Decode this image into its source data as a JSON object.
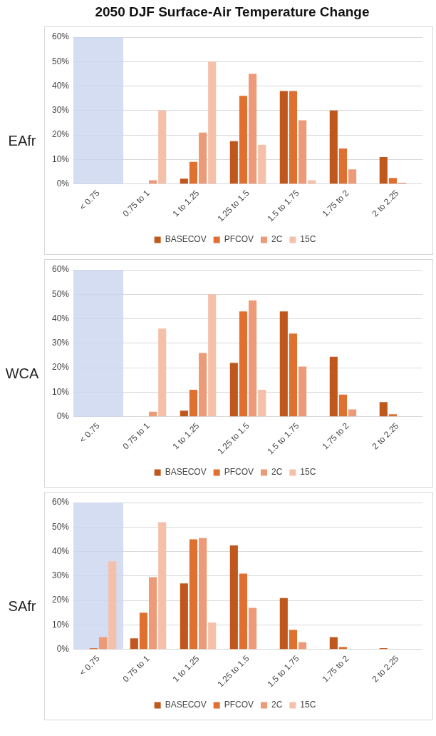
{
  "chart_data": [
    {
      "type": "bar",
      "title": "2050 DJF Surface-Air Temperature Change",
      "ylabel": "EAfr",
      "categories": [
        "< 0.75",
        "0.75 to 1",
        "1 to 1.25",
        "1.25 to 1.5",
        "1.5 to 1.75",
        "1.75 to 2",
        "2 to 2.25"
      ],
      "series": [
        {
          "name": "BASECOV",
          "color": "#c0581e",
          "values": [
            0,
            0,
            2.2,
            17.5,
            38,
            30,
            11
          ]
        },
        {
          "name": "PFCOV",
          "color": "#e07030",
          "values": [
            0,
            null,
            9,
            36,
            38,
            14.5,
            2.5
          ]
        },
        {
          "name": "2C",
          "color": "#ec9a78",
          "values": [
            0,
            1.5,
            21,
            45,
            26,
            6,
            0.5
          ]
        },
        {
          "name": "15C",
          "color": "#f5c0aa",
          "values": [
            0,
            30,
            50,
            16,
            1.5,
            0,
            0
          ]
        }
      ],
      "ylim": [
        0,
        60
      ],
      "yticks": [
        {
          "value": 0,
          "label": "0%"
        },
        {
          "value": 10,
          "label": "10%"
        },
        {
          "value": 20,
          "label": "20%"
        },
        {
          "value": 30,
          "label": "30%"
        },
        {
          "value": 40,
          "label": "40%"
        },
        {
          "value": 50,
          "label": "50%"
        },
        {
          "value": 60,
          "label": "60%"
        }
      ],
      "grid": "y",
      "legend": "bottom",
      "bands": [
        {
          "axis": "x",
          "from": "< 0.75",
          "to": "< 0.75",
          "color": "#c9d5ee"
        }
      ]
    },
    {
      "type": "bar",
      "ylabel": "WCA",
      "categories": [
        "< 0.75",
        "0.75 to 1",
        "1 to 1.25",
        "1.25 to 1.5",
        "1.5 to 1.75",
        "1.75 to 2",
        "2 to 2.25"
      ],
      "series": [
        {
          "name": "BASECOV",
          "color": "#c0581e",
          "values": [
            0,
            0,
            2.5,
            22,
            43,
            24.5,
            6
          ]
        },
        {
          "name": "PFCOV",
          "color": "#e07030",
          "values": [
            0,
            0,
            11,
            43,
            34,
            9,
            1
          ]
        },
        {
          "name": "2C",
          "color": "#ec9a78",
          "values": [
            0,
            2,
            26,
            47.5,
            20.5,
            3,
            0
          ]
        },
        {
          "name": "15C",
          "color": "#f5c0aa",
          "values": [
            0,
            36,
            50,
            11,
            null,
            0,
            0
          ]
        }
      ],
      "ylim": [
        0,
        60
      ],
      "yticks": [
        {
          "value": 0,
          "label": "0%"
        },
        {
          "value": 10,
          "label": "10%"
        },
        {
          "value": 20,
          "label": "20%"
        },
        {
          "value": 30,
          "label": "30%"
        },
        {
          "value": 40,
          "label": "40%"
        },
        {
          "value": 50,
          "label": "50%"
        },
        {
          "value": 60,
          "label": "60%"
        }
      ],
      "grid": "y",
      "legend": "bottom",
      "bands": [
        {
          "axis": "x",
          "from": "< 0.75",
          "to": "< 0.75",
          "color": "#c9d5ee"
        }
      ]
    },
    {
      "type": "bar",
      "ylabel": "SAfr",
      "categories": [
        "< 0.75",
        "0.75 to 1",
        "1 to 1.25",
        "1.25 to 1.5",
        "1.5 to 1.75",
        "1.75 to 2",
        "2 to 2.25"
      ],
      "series": [
        {
          "name": "BASECOV",
          "color": "#c0581e",
          "values": [
            0,
            4.5,
            27,
            42.5,
            21,
            5,
            0.5
          ]
        },
        {
          "name": "PFCOV",
          "color": "#e07030",
          "values": [
            0.5,
            15,
            45,
            31,
            8,
            1,
            0
          ]
        },
        {
          "name": "2C",
          "color": "#ec9a78",
          "values": [
            5,
            29.5,
            45.5,
            17,
            3,
            0,
            0
          ]
        },
        {
          "name": "15C",
          "color": "#f5c0aa",
          "values": [
            36,
            52,
            11,
            null,
            0,
            0,
            0
          ]
        }
      ],
      "ylim": [
        0,
        60
      ],
      "yticks": [
        {
          "value": 0,
          "label": "0%"
        },
        {
          "value": 10,
          "label": "10%"
        },
        {
          "value": 20,
          "label": "20%"
        },
        {
          "value": 30,
          "label": "30%"
        },
        {
          "value": 40,
          "label": "40%"
        },
        {
          "value": 50,
          "label": "50%"
        },
        {
          "value": 60,
          "label": "60%"
        }
      ],
      "grid": "y",
      "legend": "bottom",
      "bands": [
        {
          "axis": "x",
          "from": "< 0.75",
          "to": "< 0.75",
          "color": "#c9d5ee"
        }
      ]
    }
  ]
}
